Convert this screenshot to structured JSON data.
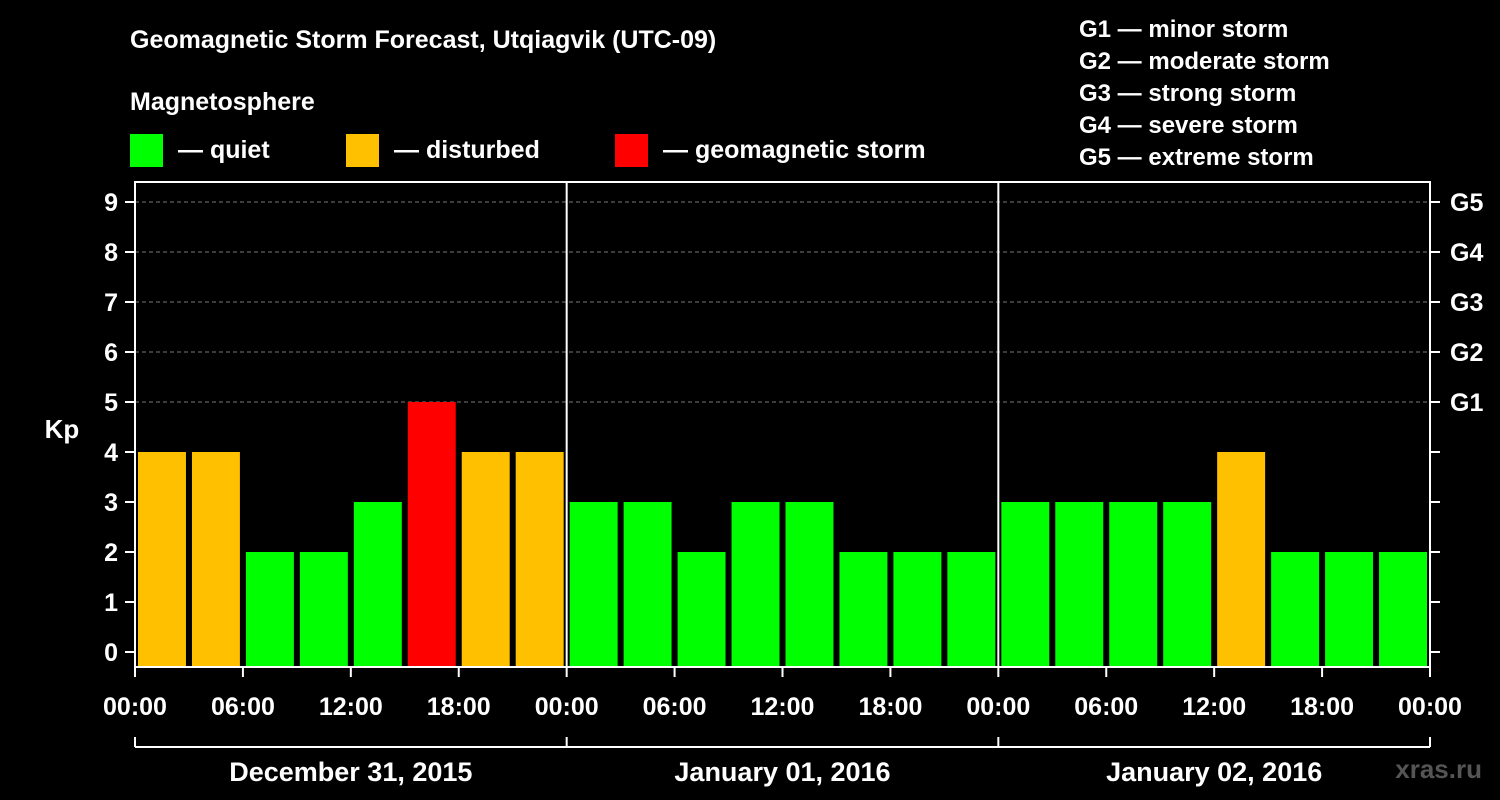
{
  "chart_data": {
    "type": "bar",
    "title": "Geomagnetic Storm Forecast, Utqiagvik (UTC-09)",
    "ylabel": "Kp",
    "ylim": [
      0,
      9
    ],
    "y_ticks": [
      "0",
      "1",
      "2",
      "3",
      "4",
      "5",
      "6",
      "7",
      "8",
      "9"
    ],
    "g_scale": [
      {
        "kp": 5,
        "label": "G1"
      },
      {
        "kp": 6,
        "label": "G2"
      },
      {
        "kp": 7,
        "label": "G3"
      },
      {
        "kp": 8,
        "label": "G4"
      },
      {
        "kp": 9,
        "label": "G5"
      }
    ],
    "x_tick_labels": [
      "00:00",
      "06:00",
      "12:00",
      "18:00",
      "00:00",
      "06:00",
      "12:00",
      "18:00",
      "00:00",
      "06:00",
      "12:00",
      "18:00",
      "00:00"
    ],
    "days": [
      "December 31, 2015",
      "January 01, 2016",
      "January 02, 2016"
    ],
    "values": [
      4,
      4,
      2,
      2,
      3,
      5,
      4,
      4,
      3,
      3,
      2,
      3,
      3,
      2,
      2,
      2,
      3,
      3,
      3,
      3,
      4,
      2,
      2,
      2
    ],
    "magnetosphere_legend": {
      "title": "Magnetosphere",
      "items": [
        {
          "label": "— quiet",
          "color": "#00ff00"
        },
        {
          "label": "— disturbed",
          "color": "#ffc000"
        },
        {
          "label": "— geomagnetic storm",
          "color": "#ff0000"
        }
      ]
    },
    "storm_legend": [
      "G1 — minor storm",
      "G2 — moderate storm",
      "G3 — strong storm",
      "G4 — severe storm",
      "G5 — extreme storm"
    ],
    "colors": {
      "quiet": "#00ff00",
      "disturbed": "#ffc000",
      "storm": "#ff0000",
      "grid": "#777777",
      "axes": "#ffffff",
      "background": "#000000"
    },
    "grid": true
  },
  "watermark": "xras.ru"
}
